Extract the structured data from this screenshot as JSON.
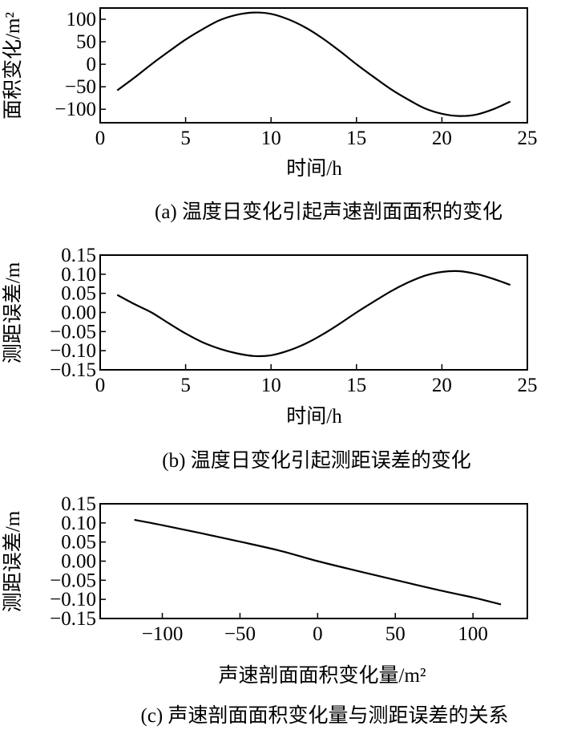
{
  "chart_data": [
    {
      "type": "line",
      "caption": "(a) 温度日变化引起声速剖面面积的变化",
      "xlabel": "时间/h",
      "ylabel": "面积变化/m²",
      "xlim": [
        0,
        25
      ],
      "ylim": [
        -130,
        125
      ],
      "xticks": [
        0,
        5,
        10,
        15,
        20,
        25
      ],
      "yticks": [
        100,
        50,
        0,
        -50,
        -100
      ],
      "grid": false,
      "series": [
        {
          "x": [
            1,
            2,
            3,
            4,
            5,
            6,
            7,
            8,
            9,
            10,
            11,
            12,
            13,
            14,
            15,
            16,
            17,
            18,
            19,
            20,
            21,
            22,
            23,
            24
          ],
          "y": [
            -58,
            -30,
            0,
            28,
            55,
            78,
            98,
            110,
            115,
            112,
            100,
            82,
            58,
            30,
            0,
            -28,
            -55,
            -78,
            -98,
            -110,
            -115,
            -112,
            -100,
            -83
          ]
        }
      ]
    },
    {
      "type": "line",
      "caption": "(b) 温度日变化引起测距误差的变化",
      "xlabel": "时间/h",
      "ylabel": "测距误差/m",
      "xlim": [
        0,
        25
      ],
      "ylim": [
        -0.15,
        0.15
      ],
      "xticks": [
        0,
        5,
        10,
        15,
        20,
        25
      ],
      "yticks": [
        "0.15",
        "0.10",
        "0.05",
        "0.00",
        "-0.05",
        "-0.10",
        "-0.15"
      ],
      "grid": false,
      "series": [
        {
          "x": [
            1,
            2,
            3,
            4,
            5,
            6,
            7,
            8,
            9,
            10,
            11,
            12,
            13,
            14,
            15,
            16,
            17,
            18,
            19,
            20,
            21,
            22,
            23,
            24
          ],
          "y": [
            0.046,
            0.022,
            0.0,
            -0.028,
            -0.055,
            -0.078,
            -0.095,
            -0.107,
            -0.114,
            -0.112,
            -0.1,
            -0.082,
            -0.058,
            -0.03,
            0.0,
            0.028,
            0.055,
            0.078,
            0.096,
            0.106,
            0.108,
            0.101,
            0.088,
            0.072
          ]
        }
      ]
    },
    {
      "type": "line",
      "caption": "(c) 声速剖面面积变化量与测距误差的关系",
      "xlabel": "声速剖面面积变化量/m²",
      "ylabel": "测距误差/m",
      "xlim": [
        -140,
        135
      ],
      "ylim": [
        -0.15,
        0.15
      ],
      "xticks": [
        -100,
        -50,
        0,
        50,
        100
      ],
      "yticks": [
        "0.15",
        "0.10",
        "0.05",
        "0.00",
        "-0.05",
        "-0.10",
        "-0.15"
      ],
      "grid": false,
      "series": [
        {
          "x": [
            -118,
            -100,
            -75,
            -50,
            -25,
            0,
            25,
            50,
            75,
            100,
            106,
            118
          ],
          "y": [
            0.108,
            0.094,
            0.073,
            0.051,
            0.028,
            0.0,
            -0.025,
            -0.049,
            -0.073,
            -0.095,
            -0.101,
            -0.113
          ]
        }
      ]
    }
  ]
}
